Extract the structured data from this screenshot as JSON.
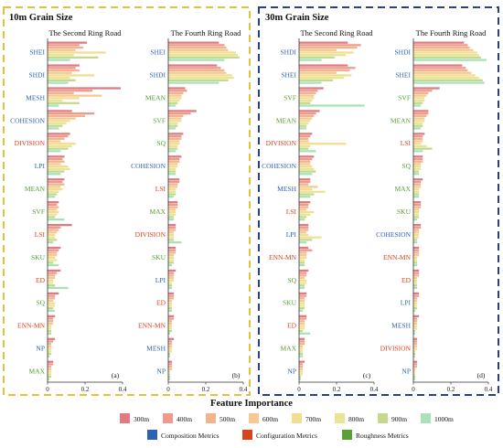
{
  "groups": [
    {
      "title": "10m Grain Size",
      "border": "#e1c33a"
    },
    {
      "title": "30m Grain Size",
      "border": "#2a3f86"
    }
  ],
  "legend": {
    "title": "Feature Importance",
    "scales": [
      {
        "label": "300m",
        "color": "#e07b80"
      },
      {
        "label": "400m",
        "color": "#ee9b8e"
      },
      {
        "label": "500m",
        "color": "#f2b48e"
      },
      {
        "label": "600m",
        "color": "#f6c992"
      },
      {
        "label": "700m",
        "color": "#f3dd8f"
      },
      {
        "label": "800m",
        "color": "#e8e596"
      },
      {
        "label": "900m",
        "color": "#c5d98c"
      },
      {
        "label": "1000m",
        "color": "#a9e2b9"
      }
    ],
    "metric_types": [
      {
        "label": "Composition Metrics",
        "color": "#2e62b5"
      },
      {
        "label": "Configuration Metrics",
        "color": "#d9431f"
      },
      {
        "label": "Roughness Metrics",
        "color": "#58a132"
      }
    ]
  },
  "chart_data": [
    {
      "type": "bar",
      "orientation": "horizontal",
      "panel": "(a)",
      "group": "10m Grain Size",
      "title": "The Second Ring Road",
      "xlim": [
        0,
        0.4
      ],
      "xticks": [
        "0",
        "0.2",
        "0.4"
      ],
      "features": [
        {
          "name": "SHEI",
          "category": "composition",
          "values": [
            0.21,
            0.17,
            0.19,
            0.15,
            0.31,
            0.14,
            0.27,
            0.12
          ]
        },
        {
          "name": "SHDI",
          "category": "composition",
          "values": [
            0.17,
            0.15,
            0.17,
            0.13,
            0.25,
            0.12,
            0.15,
            0.11
          ]
        },
        {
          "name": "MESH",
          "category": "composition",
          "values": [
            0.39,
            0.24,
            0.14,
            0.29,
            0.17,
            0.08,
            0.17,
            0.06
          ]
        },
        {
          "name": "COHESION",
          "category": "composition",
          "values": [
            0.13,
            0.25,
            0.2,
            0.15,
            0.12,
            0.1,
            0.08,
            0.06
          ]
        },
        {
          "name": "DIVISION",
          "category": "configuration",
          "values": [
            0.12,
            0.11,
            0.09,
            0.07,
            0.15,
            0.13,
            0.11,
            0.07
          ]
        },
        {
          "name": "LPI",
          "category": "composition",
          "values": [
            0.09,
            0.08,
            0.09,
            0.07,
            0.11,
            0.12,
            0.09,
            0.07
          ]
        },
        {
          "name": "MEAN",
          "category": "roughness",
          "values": [
            0.09,
            0.08,
            0.09,
            0.07,
            0.08,
            0.06,
            0.05,
            0.04
          ]
        },
        {
          "name": "SVF",
          "category": "roughness",
          "values": [
            0.06,
            0.05,
            0.06,
            0.05,
            0.06,
            0.05,
            0.04,
            0.09
          ]
        },
        {
          "name": "LSI",
          "category": "configuration",
          "values": [
            0.13,
            0.07,
            0.06,
            0.05,
            0.04,
            0.04,
            0.05,
            0.03
          ]
        },
        {
          "name": "SKU",
          "category": "roughness",
          "values": [
            0.07,
            0.06,
            0.05,
            0.05,
            0.04,
            0.05,
            0.03,
            0.06
          ]
        },
        {
          "name": "ED",
          "category": "configuration",
          "values": [
            0.07,
            0.05,
            0.04,
            0.04,
            0.03,
            0.03,
            0.04,
            0.11
          ]
        },
        {
          "name": "SQ",
          "category": "roughness",
          "values": [
            0.06,
            0.04,
            0.04,
            0.03,
            0.04,
            0.04,
            0.03,
            0.04
          ]
        },
        {
          "name": "ENN-MN",
          "category": "configuration",
          "values": [
            0.04,
            0.03,
            0.03,
            0.03,
            0.02,
            0.02,
            0.02,
            0.02
          ]
        },
        {
          "name": "NP",
          "category": "composition",
          "values": [
            0.04,
            0.03,
            0.02,
            0.02,
            0.02,
            0.02,
            0.02,
            0.01
          ]
        },
        {
          "name": "MAX",
          "category": "roughness",
          "values": [
            0.03,
            0.03,
            0.02,
            0.02,
            0.02,
            0.02,
            0.02,
            0.01
          ]
        }
      ]
    },
    {
      "type": "bar",
      "orientation": "horizontal",
      "panel": "(b)",
      "group": "10m Grain Size",
      "title": "The Fourth Ring Road",
      "xlim": [
        0,
        0.4
      ],
      "xticks": [
        "0",
        "0.2",
        "0.4"
      ],
      "features": [
        {
          "name": "SHEI",
          "category": "composition",
          "values": [
            0.27,
            0.3,
            0.31,
            0.32,
            0.36,
            0.37,
            0.38,
            0.3
          ]
        },
        {
          "name": "SHDI",
          "category": "composition",
          "values": [
            0.26,
            0.28,
            0.3,
            0.31,
            0.34,
            0.35,
            0.32,
            0.27
          ]
        },
        {
          "name": "MEAN",
          "category": "roughness",
          "values": [
            0.09,
            0.1,
            0.08,
            0.07,
            0.07,
            0.06,
            0.05,
            0.04
          ]
        },
        {
          "name": "SVF",
          "category": "roughness",
          "values": [
            0.15,
            0.12,
            0.08,
            0.07,
            0.07,
            0.05,
            0.05,
            0.04
          ]
        },
        {
          "name": "SQ",
          "category": "roughness",
          "values": [
            0.08,
            0.07,
            0.07,
            0.06,
            0.06,
            0.05,
            0.05,
            0.04
          ]
        },
        {
          "name": "COHESION",
          "category": "composition",
          "values": [
            0.07,
            0.06,
            0.06,
            0.05,
            0.05,
            0.04,
            0.04,
            0.04
          ]
        },
        {
          "name": "LSI",
          "category": "configuration",
          "values": [
            0.06,
            0.06,
            0.05,
            0.05,
            0.04,
            0.04,
            0.04,
            0.03
          ]
        },
        {
          "name": "MAX",
          "category": "roughness",
          "values": [
            0.05,
            0.05,
            0.05,
            0.04,
            0.04,
            0.04,
            0.03,
            0.03
          ]
        },
        {
          "name": "DIVISION",
          "category": "configuration",
          "values": [
            0.04,
            0.04,
            0.04,
            0.03,
            0.03,
            0.03,
            0.03,
            0.07
          ]
        },
        {
          "name": "SKU",
          "category": "roughness",
          "values": [
            0.04,
            0.04,
            0.04,
            0.03,
            0.03,
            0.03,
            0.03,
            0.02
          ]
        },
        {
          "name": "LPI",
          "category": "composition",
          "values": [
            0.04,
            0.03,
            0.03,
            0.03,
            0.03,
            0.02,
            0.02,
            0.02
          ]
        },
        {
          "name": "ED",
          "category": "configuration",
          "values": [
            0.03,
            0.03,
            0.03,
            0.02,
            0.02,
            0.02,
            0.02,
            0.02
          ]
        },
        {
          "name": "ENN-MN",
          "category": "configuration",
          "values": [
            0.03,
            0.03,
            0.02,
            0.02,
            0.02,
            0.02,
            0.02,
            0.01
          ]
        },
        {
          "name": "MESH",
          "category": "composition",
          "values": [
            0.03,
            0.02,
            0.02,
            0.02,
            0.02,
            0.02,
            0.01,
            0.01
          ]
        },
        {
          "name": "NP",
          "category": "composition",
          "values": [
            0.02,
            0.02,
            0.02,
            0.02,
            0.01,
            0.01,
            0.01,
            0.01
          ]
        }
      ]
    },
    {
      "type": "bar",
      "orientation": "horizontal",
      "panel": "(c)",
      "group": "30m Grain Size",
      "title": "The Second Ring Road",
      "xlim": [
        0,
        0.4
      ],
      "xticks": [
        "0",
        "0.2",
        "0.4"
      ],
      "features": [
        {
          "name": "SHDI",
          "category": "composition",
          "values": [
            0.26,
            0.33,
            0.31,
            0.2,
            0.29,
            0.25,
            0.19,
            0.12
          ]
        },
        {
          "name": "SHEI",
          "category": "composition",
          "values": [
            0.26,
            0.3,
            0.27,
            0.2,
            0.28,
            0.24,
            0.18,
            0.12
          ]
        },
        {
          "name": "SVF",
          "category": "roughness",
          "values": [
            0.13,
            0.1,
            0.09,
            0.08,
            0.08,
            0.07,
            0.06,
            0.35
          ]
        },
        {
          "name": "MEAN",
          "category": "roughness",
          "values": [
            0.11,
            0.09,
            0.08,
            0.07,
            0.06,
            0.05,
            0.04,
            0.04
          ]
        },
        {
          "name": "DIVISION",
          "category": "configuration",
          "values": [
            0.07,
            0.06,
            0.05,
            0.05,
            0.25,
            0.06,
            0.05,
            0.09
          ]
        },
        {
          "name": "COHESION",
          "category": "composition",
          "values": [
            0.08,
            0.07,
            0.06,
            0.06,
            0.07,
            0.08,
            0.09,
            0.07
          ]
        },
        {
          "name": "MESH",
          "category": "composition",
          "values": [
            0.06,
            0.06,
            0.05,
            0.1,
            0.07,
            0.14,
            0.08,
            0.06
          ]
        },
        {
          "name": "LSI",
          "category": "configuration",
          "values": [
            0.06,
            0.05,
            0.05,
            0.04,
            0.08,
            0.06,
            0.04,
            0.03
          ]
        },
        {
          "name": "LPI",
          "category": "composition",
          "values": [
            0.05,
            0.05,
            0.05,
            0.04,
            0.05,
            0.12,
            0.07,
            0.04
          ]
        },
        {
          "name": "ENN-MN",
          "category": "configuration",
          "values": [
            0.05,
            0.07,
            0.04,
            0.04,
            0.04,
            0.03,
            0.03,
            0.03
          ]
        },
        {
          "name": "SQ",
          "category": "roughness",
          "values": [
            0.05,
            0.04,
            0.04,
            0.03,
            0.04,
            0.04,
            0.03,
            0.03
          ]
        },
        {
          "name": "SKU",
          "category": "roughness",
          "values": [
            0.04,
            0.04,
            0.03,
            0.03,
            0.03,
            0.03,
            0.03,
            0.02
          ]
        },
        {
          "name": "ED",
          "category": "configuration",
          "values": [
            0.04,
            0.04,
            0.03,
            0.03,
            0.03,
            0.03,
            0.02,
            0.06
          ]
        },
        {
          "name": "MAX",
          "category": "roughness",
          "values": [
            0.03,
            0.03,
            0.03,
            0.02,
            0.02,
            0.02,
            0.02,
            0.02
          ]
        },
        {
          "name": "NP",
          "category": "composition",
          "values": [
            0.03,
            0.02,
            0.02,
            0.02,
            0.02,
            0.02,
            0.01,
            0.01
          ]
        }
      ]
    },
    {
      "type": "bar",
      "orientation": "horizontal",
      "panel": "(d)",
      "group": "30m Grain Size",
      "title": "The Fourth Ring Road",
      "xlim": [
        0,
        0.4
      ],
      "xticks": [
        "0",
        "0.2",
        "0.4"
      ],
      "features": [
        {
          "name": "SHDI",
          "category": "composition",
          "values": [
            0.27,
            0.29,
            0.3,
            0.32,
            0.34,
            0.35,
            0.36,
            0.39
          ]
        },
        {
          "name": "SHEI",
          "category": "composition",
          "values": [
            0.26,
            0.28,
            0.29,
            0.31,
            0.33,
            0.35,
            0.37,
            0.38
          ]
        },
        {
          "name": "SVF",
          "category": "roughness",
          "values": [
            0.14,
            0.1,
            0.08,
            0.07,
            0.06,
            0.06,
            0.05,
            0.04
          ]
        },
        {
          "name": "MEAN",
          "category": "roughness",
          "values": [
            0.08,
            0.08,
            0.07,
            0.06,
            0.06,
            0.05,
            0.05,
            0.04
          ]
        },
        {
          "name": "LSI",
          "category": "configuration",
          "values": [
            0.06,
            0.05,
            0.05,
            0.05,
            0.04,
            0.07,
            0.1,
            0.05
          ]
        },
        {
          "name": "SQ",
          "category": "roughness",
          "values": [
            0.05,
            0.05,
            0.05,
            0.04,
            0.04,
            0.04,
            0.03,
            0.03
          ]
        },
        {
          "name": "MAX",
          "category": "roughness",
          "values": [
            0.05,
            0.04,
            0.04,
            0.04,
            0.03,
            0.03,
            0.03,
            0.03
          ]
        },
        {
          "name": "SKU",
          "category": "roughness",
          "values": [
            0.04,
            0.04,
            0.04,
            0.03,
            0.03,
            0.03,
            0.03,
            0.02
          ]
        },
        {
          "name": "COHESION",
          "category": "composition",
          "values": [
            0.04,
            0.04,
            0.03,
            0.03,
            0.03,
            0.03,
            0.02,
            0.02
          ]
        },
        {
          "name": "ENN-MN",
          "category": "configuration",
          "values": [
            0.03,
            0.03,
            0.03,
            0.03,
            0.02,
            0.02,
            0.02,
            0.02
          ]
        },
        {
          "name": "ED",
          "category": "configuration",
          "values": [
            0.03,
            0.03,
            0.03,
            0.02,
            0.02,
            0.02,
            0.02,
            0.02
          ]
        },
        {
          "name": "LPI",
          "category": "composition",
          "values": [
            0.03,
            0.03,
            0.02,
            0.02,
            0.02,
            0.02,
            0.02,
            0.01
          ]
        },
        {
          "name": "MESH",
          "category": "composition",
          "values": [
            0.03,
            0.02,
            0.02,
            0.02,
            0.02,
            0.02,
            0.01,
            0.01
          ]
        },
        {
          "name": "DIVISION",
          "category": "configuration",
          "values": [
            0.02,
            0.02,
            0.02,
            0.02,
            0.02,
            0.01,
            0.01,
            0.01
          ]
        },
        {
          "name": "NP",
          "category": "composition",
          "values": [
            0.02,
            0.02,
            0.02,
            0.01,
            0.01,
            0.01,
            0.01,
            0.01
          ]
        }
      ]
    }
  ]
}
